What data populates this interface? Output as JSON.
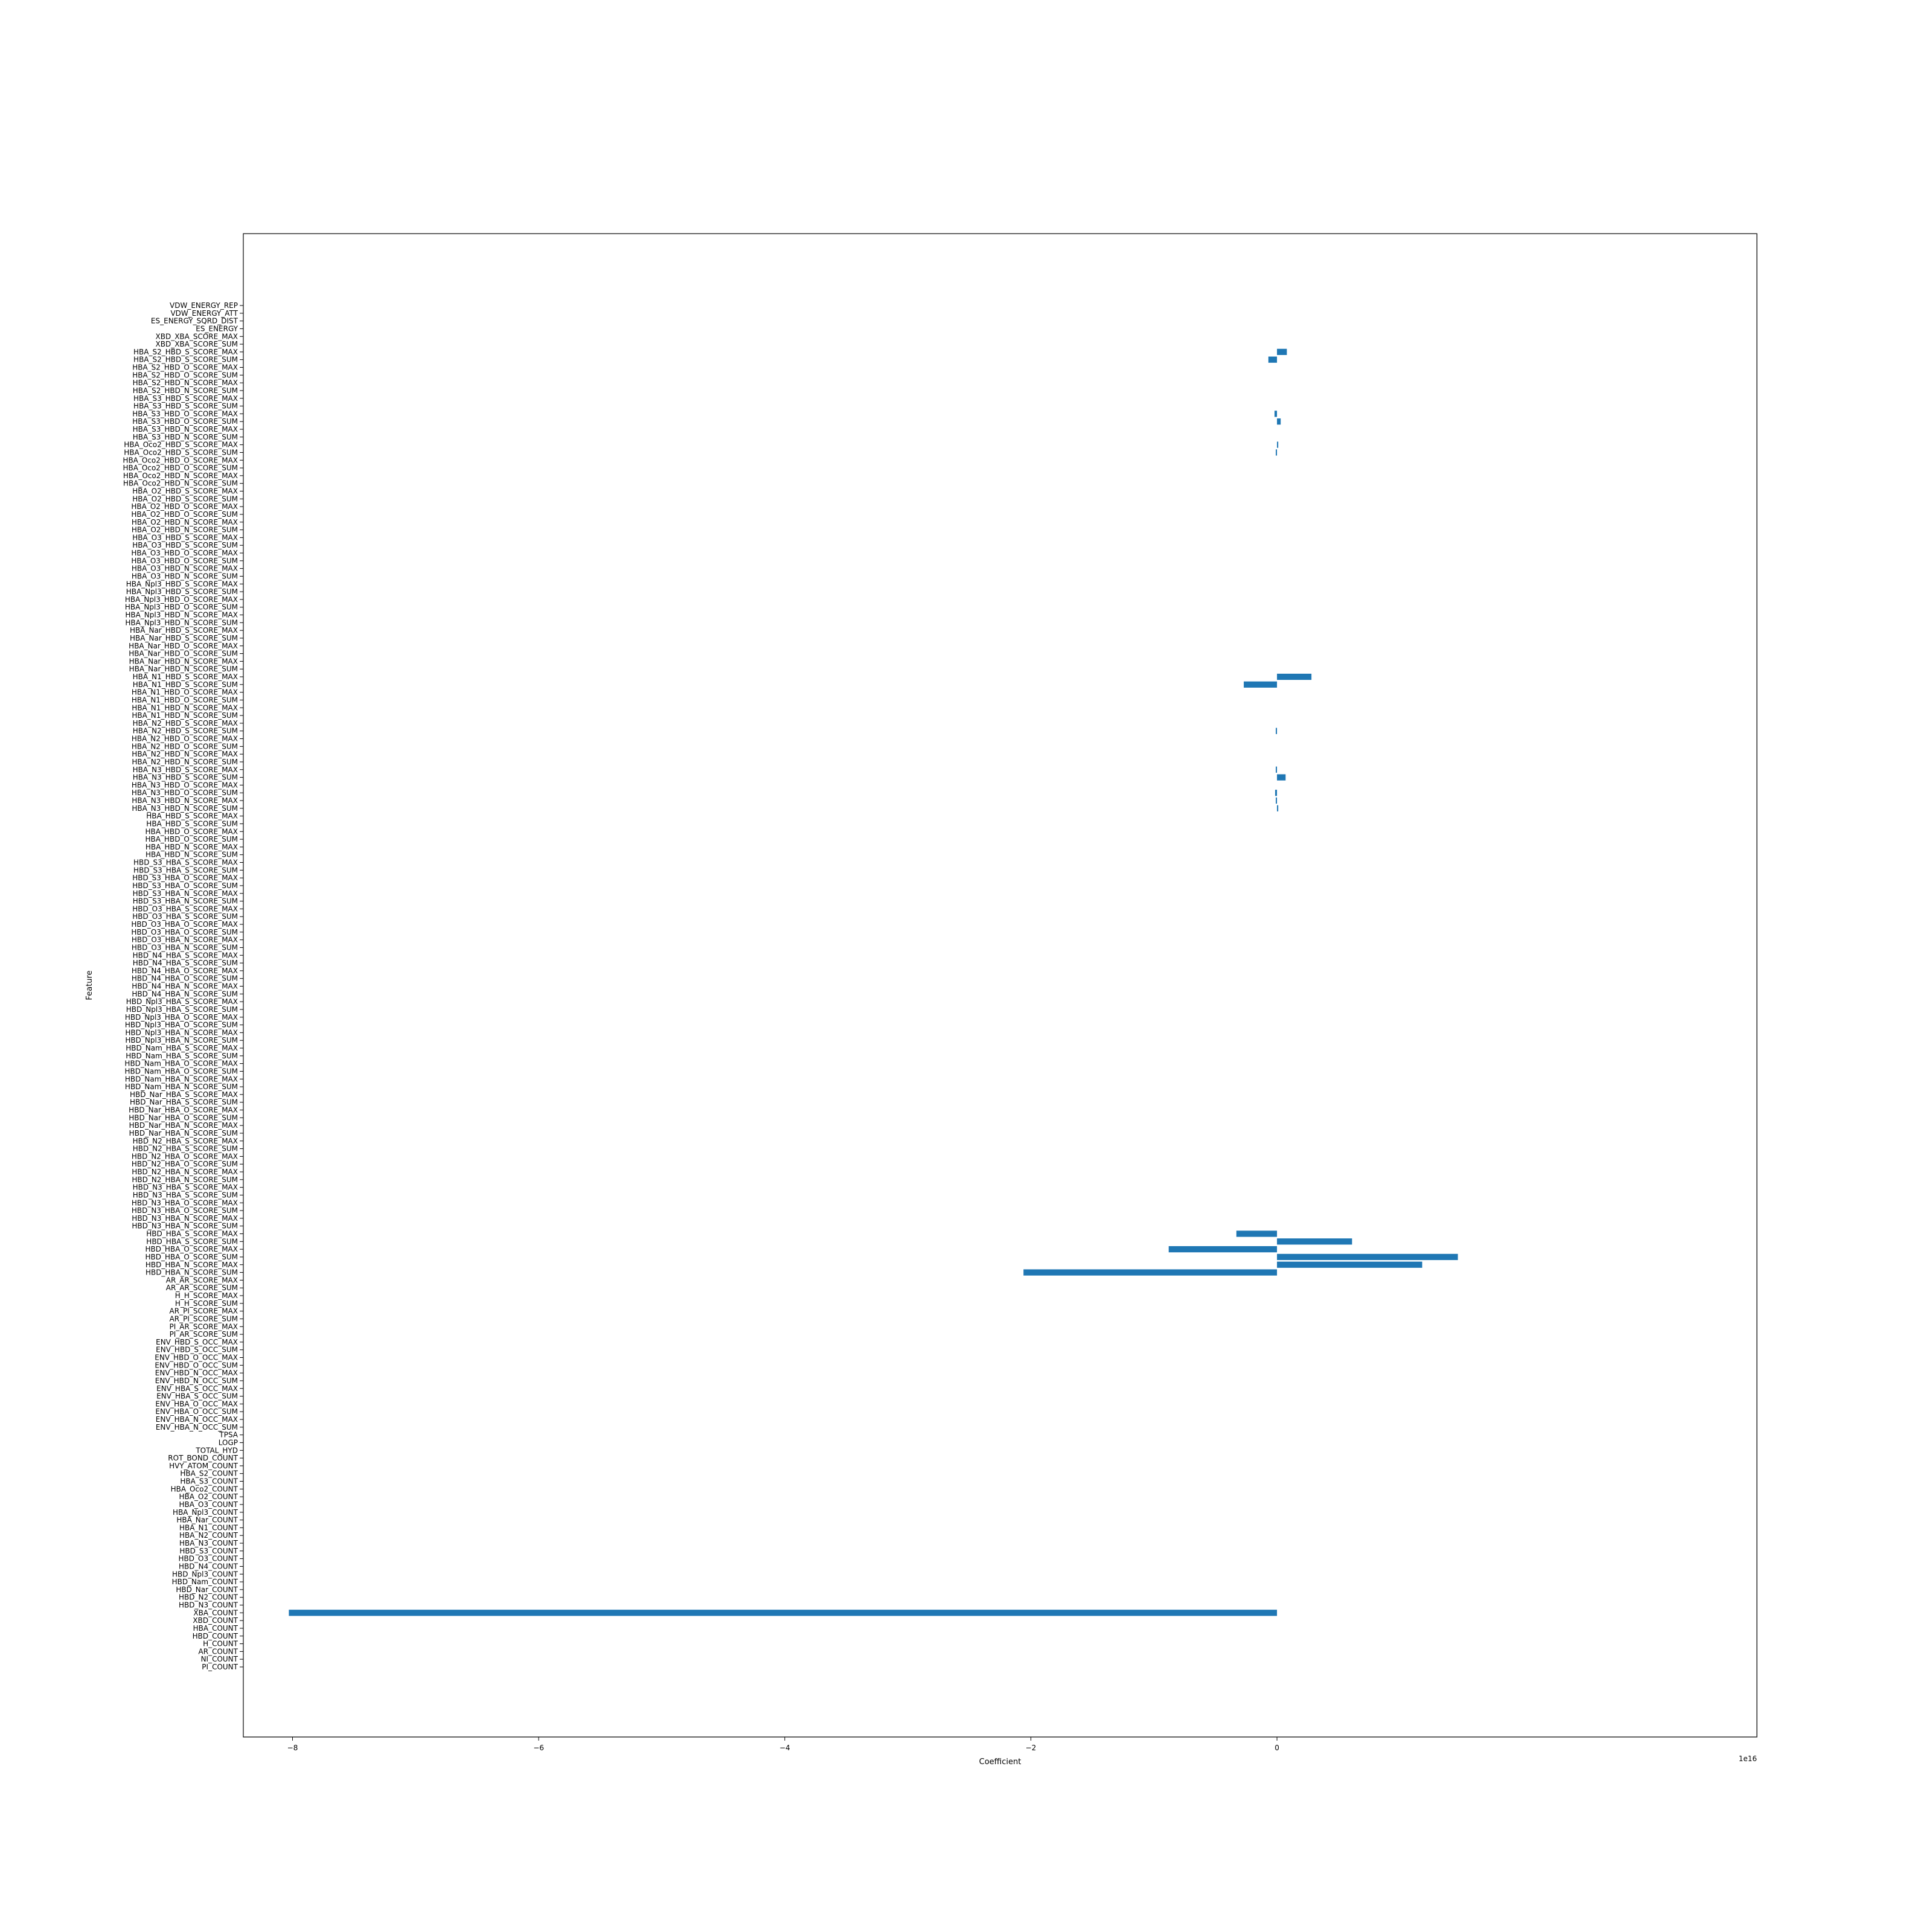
{
  "chart_data": {
    "type": "bar",
    "orientation": "horizontal",
    "xlabel": "Coefficient",
    "ylabel": "Feature",
    "x_offset_text": "1e16",
    "x_scale": 1e+16,
    "xlim": [
      -8.4,
      3.9
    ],
    "xticks": [
      -8,
      -6,
      -4,
      -2,
      0
    ],
    "xtick_labels": [
      "−8",
      "−6",
      "−4",
      "−2",
      "0"
    ],
    "bar_color": "#1f77b4",
    "grid": false,
    "categories": [
      "PI_COUNT",
      "NI_COUNT",
      "AR_COUNT",
      "H_COUNT",
      "HBD_COUNT",
      "HBA_COUNT",
      "XBD_COUNT",
      "XBA_COUNT",
      "HBD_N3_COUNT",
      "HBD_N2_COUNT",
      "HBD_Nar_COUNT",
      "HBD_Nam_COUNT",
      "HBD_Npl3_COUNT",
      "HBD_N4_COUNT",
      "HBD_O3_COUNT",
      "HBD_S3_COUNT",
      "HBA_N3_COUNT",
      "HBA_N2_COUNT",
      "HBA_N1_COUNT",
      "HBA_Nar_COUNT",
      "HBA_Npl3_COUNT",
      "HBA_O3_COUNT",
      "HBA_O2_COUNT",
      "HBA_Oco2_COUNT",
      "HBA_S3_COUNT",
      "HBA_S2_COUNT",
      "HVY_ATOM_COUNT",
      "ROT_BOND_COUNT",
      "TOTAL_HYD",
      "LOGP",
      "TPSA",
      "ENV_HBA_N_OCC_SUM",
      "ENV_HBA_N_OCC_MAX",
      "ENV_HBA_O_OCC_SUM",
      "ENV_HBA_O_OCC_MAX",
      "ENV_HBA_S_OCC_SUM",
      "ENV_HBA_S_OCC_MAX",
      "ENV_HBD_N_OCC_SUM",
      "ENV_HBD_N_OCC_MAX",
      "ENV_HBD_O_OCC_SUM",
      "ENV_HBD_O_OCC_MAX",
      "ENV_HBD_S_OCC_SUM",
      "ENV_HBD_S_OCC_MAX",
      "PI_AR_SCORE_SUM",
      "PI_AR_SCORE_MAX",
      "AR_PI_SCORE_SUM",
      "AR_PI_SCORE_MAX",
      "H_H_SCORE_SUM",
      "H_H_SCORE_MAX",
      "AR_AR_SCORE_SUM",
      "AR_AR_SCORE_MAX",
      "HBD_HBA_N_SCORE_SUM",
      "HBD_HBA_N_SCORE_MAX",
      "HBD_HBA_O_SCORE_SUM",
      "HBD_HBA_O_SCORE_MAX",
      "HBD_HBA_S_SCORE_SUM",
      "HBD_HBA_S_SCORE_MAX",
      "HBD_N3_HBA_N_SCORE_SUM",
      "HBD_N3_HBA_N_SCORE_MAX",
      "HBD_N3_HBA_O_SCORE_SUM",
      "HBD_N3_HBA_O_SCORE_MAX",
      "HBD_N3_HBA_S_SCORE_SUM",
      "HBD_N3_HBA_S_SCORE_MAX",
      "HBD_N2_HBA_N_SCORE_SUM",
      "HBD_N2_HBA_N_SCORE_MAX",
      "HBD_N2_HBA_O_SCORE_SUM",
      "HBD_N2_HBA_O_SCORE_MAX",
      "HBD_N2_HBA_S_SCORE_SUM",
      "HBD_N2_HBA_S_SCORE_MAX",
      "HBD_Nar_HBA_N_SCORE_SUM",
      "HBD_Nar_HBA_N_SCORE_MAX",
      "HBD_Nar_HBA_O_SCORE_SUM",
      "HBD_Nar_HBA_O_SCORE_MAX",
      "HBD_Nar_HBA_S_SCORE_SUM",
      "HBD_Nar_HBA_S_SCORE_MAX",
      "HBD_Nam_HBA_N_SCORE_SUM",
      "HBD_Nam_HBA_N_SCORE_MAX",
      "HBD_Nam_HBA_O_SCORE_SUM",
      "HBD_Nam_HBA_O_SCORE_MAX",
      "HBD_Nam_HBA_S_SCORE_SUM",
      "HBD_Nam_HBA_S_SCORE_MAX",
      "HBD_Npl3_HBA_N_SCORE_SUM",
      "HBD_Npl3_HBA_N_SCORE_MAX",
      "HBD_Npl3_HBA_O_SCORE_SUM",
      "HBD_Npl3_HBA_O_SCORE_MAX",
      "HBD_Npl3_HBA_S_SCORE_SUM",
      "HBD_Npl3_HBA_S_SCORE_MAX",
      "HBD_N4_HBA_N_SCORE_SUM",
      "HBD_N4_HBA_N_SCORE_MAX",
      "HBD_N4_HBA_O_SCORE_SUM",
      "HBD_N4_HBA_O_SCORE_MAX",
      "HBD_N4_HBA_S_SCORE_SUM",
      "HBD_N4_HBA_S_SCORE_MAX",
      "HBD_O3_HBA_N_SCORE_SUM",
      "HBD_O3_HBA_N_SCORE_MAX",
      "HBD_O3_HBA_O_SCORE_SUM",
      "HBD_O3_HBA_O_SCORE_MAX",
      "HBD_O3_HBA_S_SCORE_SUM",
      "HBD_O3_HBA_S_SCORE_MAX",
      "HBD_S3_HBA_N_SCORE_SUM",
      "HBD_S3_HBA_N_SCORE_MAX",
      "HBD_S3_HBA_O_SCORE_SUM",
      "HBD_S3_HBA_O_SCORE_MAX",
      "HBD_S3_HBA_S_SCORE_SUM",
      "HBD_S3_HBA_S_SCORE_MAX",
      "HBA_HBD_N_SCORE_SUM",
      "HBA_HBD_N_SCORE_MAX",
      "HBA_HBD_O_SCORE_SUM",
      "HBA_HBD_O_SCORE_MAX",
      "HBA_HBD_S_SCORE_SUM",
      "HBA_HBD_S_SCORE_MAX",
      "HBA_N3_HBD_N_SCORE_SUM",
      "HBA_N3_HBD_N_SCORE_MAX",
      "HBA_N3_HBD_O_SCORE_SUM",
      "HBA_N3_HBD_O_SCORE_MAX",
      "HBA_N3_HBD_S_SCORE_SUM",
      "HBA_N3_HBD_S_SCORE_MAX",
      "HBA_N2_HBD_N_SCORE_SUM",
      "HBA_N2_HBD_N_SCORE_MAX",
      "HBA_N2_HBD_O_SCORE_SUM",
      "HBA_N2_HBD_O_SCORE_MAX",
      "HBA_N2_HBD_S_SCORE_SUM",
      "HBA_N2_HBD_S_SCORE_MAX",
      "HBA_N1_HBD_N_SCORE_SUM",
      "HBA_N1_HBD_N_SCORE_MAX",
      "HBA_N1_HBD_O_SCORE_SUM",
      "HBA_N1_HBD_O_SCORE_MAX",
      "HBA_N1_HBD_S_SCORE_SUM",
      "HBA_N1_HBD_S_SCORE_MAX",
      "HBA_Nar_HBD_N_SCORE_SUM",
      "HBA_Nar_HBD_N_SCORE_MAX",
      "HBA_Nar_HBD_O_SCORE_SUM",
      "HBA_Nar_HBD_O_SCORE_MAX",
      "HBA_Nar_HBD_S_SCORE_SUM",
      "HBA_Nar_HBD_S_SCORE_MAX",
      "HBA_Npl3_HBD_N_SCORE_SUM",
      "HBA_Npl3_HBD_N_SCORE_MAX",
      "HBA_Npl3_HBD_O_SCORE_SUM",
      "HBA_Npl3_HBD_O_SCORE_MAX",
      "HBA_Npl3_HBD_S_SCORE_SUM",
      "HBA_Npl3_HBD_S_SCORE_MAX",
      "HBA_O3_HBD_N_SCORE_SUM",
      "HBA_O3_HBD_N_SCORE_MAX",
      "HBA_O3_HBD_O_SCORE_SUM",
      "HBA_O3_HBD_O_SCORE_MAX",
      "HBA_O3_HBD_S_SCORE_SUM",
      "HBA_O3_HBD_S_SCORE_MAX",
      "HBA_O2_HBD_N_SCORE_SUM",
      "HBA_O2_HBD_N_SCORE_MAX",
      "HBA_O2_HBD_O_SCORE_SUM",
      "HBA_O2_HBD_O_SCORE_MAX",
      "HBA_O2_HBD_S_SCORE_SUM",
      "HBA_O2_HBD_S_SCORE_MAX",
      "HBA_Oco2_HBD_N_SCORE_SUM",
      "HBA_Oco2_HBD_N_SCORE_MAX",
      "HBA_Oco2_HBD_O_SCORE_SUM",
      "HBA_Oco2_HBD_O_SCORE_MAX",
      "HBA_Oco2_HBD_S_SCORE_SUM",
      "HBA_Oco2_HBD_S_SCORE_MAX",
      "HBA_S3_HBD_N_SCORE_SUM",
      "HBA_S3_HBD_N_SCORE_MAX",
      "HBA_S3_HBD_O_SCORE_SUM",
      "HBA_S3_HBD_O_SCORE_MAX",
      "HBA_S3_HBD_S_SCORE_SUM",
      "HBA_S3_HBD_S_SCORE_MAX",
      "HBA_S2_HBD_N_SCORE_SUM",
      "HBA_S2_HBD_N_SCORE_MAX",
      "HBA_S2_HBD_O_SCORE_SUM",
      "HBA_S2_HBD_O_SCORE_MAX",
      "HBA_S2_HBD_S_SCORE_SUM",
      "HBA_S2_HBD_S_SCORE_MAX",
      "XBD_XBA_SCORE_SUM",
      "XBD_XBA_SCORE_MAX",
      "ES_ENERGY",
      "ES_ENERGY_SQRD_DIST",
      "VDW_ENERGY_ATT",
      "VDW_ENERGY_REP"
    ],
    "values": {
      "XBA_COUNT": -8.03,
      "HBD_HBA_N_SCORE_SUM": -2.06,
      "HBD_HBA_N_SCORE_MAX": 1.18,
      "HBD_HBA_O_SCORE_SUM": 1.47,
      "HBD_HBA_O_SCORE_MAX": -0.88,
      "HBD_HBA_S_SCORE_SUM": 0.61,
      "HBD_HBA_S_SCORE_MAX": -0.33,
      "HBA_N3_HBD_N_SCORE_SUM": 0.01,
      "HBA_N3_HBD_N_SCORE_MAX": -0.01,
      "HBA_N3_HBD_O_SCORE_SUM": -0.015,
      "HBA_N3_HBD_S_SCORE_SUM": 0.07,
      "HBA_N3_HBD_S_SCORE_MAX": -0.01,
      "HBA_N2_HBD_S_SCORE_SUM": -0.01,
      "HBA_N1_HBD_S_SCORE_SUM": -0.27,
      "HBA_N1_HBD_S_SCORE_MAX": 0.28,
      "HBA_Oco2_HBD_S_SCORE_SUM": -0.01,
      "HBA_Oco2_HBD_S_SCORE_MAX": 0.01,
      "HBA_S3_HBD_O_SCORE_SUM": 0.03,
      "HBA_S3_HBD_O_SCORE_MAX": -0.02,
      "HBA_S2_HBD_S_SCORE_SUM": -0.07,
      "HBA_S2_HBD_S_SCORE_MAX": 0.08
    }
  }
}
